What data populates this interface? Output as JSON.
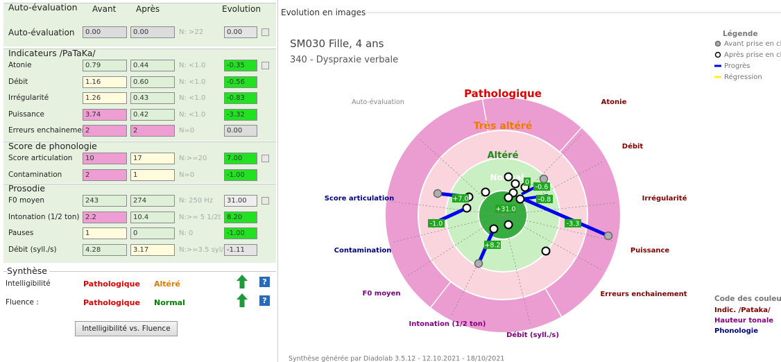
{
  "left": {
    "sections": [
      {
        "title": "Auto-évaluation",
        "columns": [
          "Avant",
          "Après",
          "Evolution"
        ],
        "rows": [
          {
            "label": "Auto-évaluation",
            "cells": [
              "0.00",
              "0.00",
              "N: >22",
              "0.00"
            ],
            "colors": [
              "#dcdcdc",
              "#dcdcdc",
              "#e4e4e4"
            ]
          }
        ]
      },
      {
        "title": "Indicateurs /PaTaKa/",
        "rows": [
          {
            "label": "Atonie",
            "cells": [
              "0.79",
              "0.44",
              "N: <1.0",
              "-0.35"
            ],
            "colors": [
              "#dff0d8",
              "#dff0d8",
              "#22e022"
            ]
          },
          {
            "label": "Débit",
            "cells": [
              "1.16",
              "0.60",
              "N: <1.0",
              "-0.56"
            ],
            "colors": [
              "#fffbdc",
              "#dff0d8",
              "#22e022"
            ]
          },
          {
            "label": "Irrégularité",
            "cells": [
              "1.26",
              "0.43",
              "N: <1.0",
              "-0.83"
            ],
            "colors": [
              "#fffbdc",
              "#dff0d8",
              "#22e022"
            ]
          },
          {
            "label": "Puissance",
            "cells": [
              "3.74",
              "0.42",
              "N: <1.0",
              "-3.32"
            ],
            "colors": [
              "#ee9ed2",
              "#dff0d8",
              "#22e022"
            ]
          },
          {
            "label": "Erreurs enchainement",
            "cells": [
              "2",
              "2",
              "N=0",
              "0.00"
            ],
            "colors": [
              "#ee9ed2",
              "#ee9ed2",
              "#dcdcdc"
            ]
          }
        ]
      },
      {
        "title": "Score de phonologie",
        "rows": [
          {
            "label": "Score articulation",
            "cells": [
              "10",
              "17",
              "N:>=20",
              "7.00"
            ],
            "colors": [
              "#ee9ed2",
              "#fffbdc",
              "#22e022"
            ]
          },
          {
            "label": "Contamination",
            "cells": [
              "2",
              "1",
              "N=0",
              "-1.00"
            ],
            "colors": [
              "#ee9ed2",
              "#fffbdc",
              "#22e022"
            ]
          }
        ]
      },
      {
        "title": "Prosodie",
        "rows": [
          {
            "label": "F0 moyen",
            "cells": [
              "243",
              "274",
              "N: 250 Hz",
              "31.00"
            ],
            "colors": [
              "#dff0d8",
              "#dff0d8",
              "#eeeeee"
            ]
          },
          {
            "label": "Intonation (1/2 ton)",
            "cells": [
              "2.2",
              "10.4",
              "N:>= 5 1/2t",
              "8.20"
            ],
            "colors": [
              "#ee9ed2",
              "#dff0d8",
              "#22e022"
            ]
          },
          {
            "label": "Pauses",
            "cells": [
              "1",
              "0",
              "N: 0",
              "-1.00"
            ],
            "colors": [
              "#fffbdc",
              "#dff0d8",
              "#22e022"
            ]
          },
          {
            "label": "Débit (syll./s)",
            "cells": [
              "4.28",
              "3.17",
              "N:>=3.5 syl/s",
              "-1.11"
            ],
            "colors": [
              "#dff0d8",
              "#fffbdc",
              "#e4e4e4"
            ]
          }
        ]
      }
    ],
    "synthese": {
      "title": "Synthèse",
      "rows": [
        {
          "label": "Intelligibilité",
          "avant": "Pathologique",
          "apres": "Altéré",
          "avant_color": "#e00000",
          "apres_color": "#e07800",
          "help": "?"
        },
        {
          "label": "Fluence :",
          "avant": "Pathologique",
          "apres": "Normal",
          "avant_color": "#e00000",
          "apres_color": "#008000",
          "help": "?"
        }
      ],
      "button": "Intelligibilité vs. Fluence"
    }
  },
  "right": {
    "title": "Evolution en images",
    "patient": "SM030 Fille, 4 ans",
    "diagnosis": "340 - Dyspraxie verbale",
    "legend": {
      "title": "Légende",
      "items": [
        "Avant prise en charg",
        "Après prise en charg",
        "Progrès",
        "Régression"
      ]
    },
    "zones": [
      {
        "label": "Pathologique",
        "color": "#e00000"
      },
      {
        "label": "Très altéré",
        "color": "#ee7a00"
      },
      {
        "label": "Altéré",
        "color": "#1a8a1a"
      },
      {
        "label": "Normal",
        "color": "#ffffff"
      }
    ],
    "axes": [
      {
        "label": "Auto-évaluation",
        "color": "#888888"
      },
      {
        "label": "Atonie",
        "color": "#800000"
      },
      {
        "label": "Débit",
        "color": "#800000"
      },
      {
        "label": "Irrégularité",
        "color": "#800000"
      },
      {
        "label": "Puissance",
        "color": "#800000"
      },
      {
        "label": "Erreurs enchainement",
        "color": "#800000"
      },
      {
        "label": "Débit (syll./s)",
        "color": "#800080"
      },
      {
        "label": "Intonation (1/2 ton)",
        "color": "#800080"
      },
      {
        "label": "F0 moyen",
        "color": "#800080"
      },
      {
        "label": "Contamination",
        "color": "#000080"
      },
      {
        "label": "Score articulation",
        "color": "#000080"
      }
    ],
    "evolution_labels": [
      "+7.0",
      "-1.0",
      "+8.2",
      "+31.0",
      "-0.6",
      "-0.8",
      "-3.3",
      "0"
    ],
    "color_code": {
      "title": "Code des couleurs",
      "items": [
        {
          "label": "Indic. /Pataka/",
          "color": "#800000"
        },
        {
          "label": "Hauteur tonale",
          "color": "#800080"
        },
        {
          "label": "Phonologie",
          "color": "#000080"
        }
      ]
    },
    "footer": "Synthèse générée par Diadolab 3.5.12 - 12.10.2021 - 18/10/2021"
  }
}
